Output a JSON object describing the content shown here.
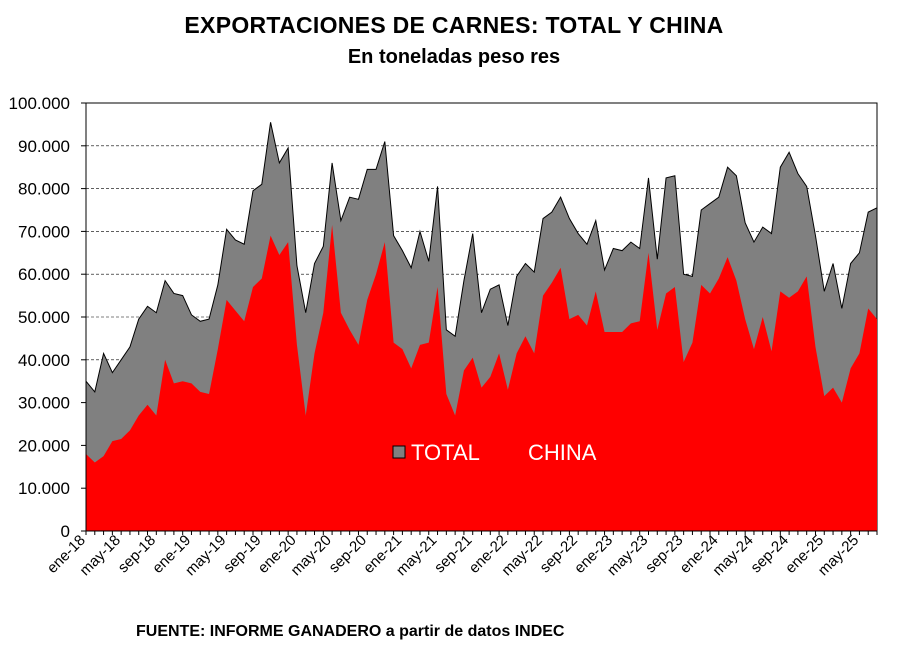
{
  "chart_data": {
    "type": "area",
    "title": "EXPORTACIONES DE CARNES: TOTAL Y CHINA",
    "subtitle": "En toneladas peso res",
    "source": "FUENTE: INFORME GANADERO a partir de datos INDEC",
    "ylim": [
      0,
      100000
    ],
    "yticks": [
      "0",
      "10.000",
      "20.000",
      "30.000",
      "40.000",
      "50.000",
      "60.000",
      "70.000",
      "80.000",
      "90.000",
      "100.000"
    ],
    "ytick_values": [
      0,
      10000,
      20000,
      30000,
      40000,
      50000,
      60000,
      70000,
      80000,
      90000,
      100000
    ],
    "xtick_labels": [
      "ene-18",
      "may-18",
      "sep-18",
      "ene-19",
      "may-19",
      "sep-19",
      "ene-20",
      "may-20",
      "sep-20",
      "ene-21",
      "may-21",
      "sep-21",
      "ene-22",
      "may-22",
      "sep-22",
      "ene-23",
      "may-23",
      "sep-23",
      "ene-24",
      "may-24",
      "sep-24",
      "ene-25",
      "may-25"
    ],
    "grid": "horizontal dashed",
    "legend_position": "center",
    "colors": {
      "total": "#808080",
      "china": "#ff0000"
    },
    "series": [
      {
        "name": "TOTAL",
        "values": [
          35000,
          32500,
          41500,
          37000,
          40000,
          43000,
          49500,
          52500,
          51000,
          58500,
          55500,
          55000,
          50500,
          49000,
          49500,
          57500,
          70500,
          68000,
          67000,
          79500,
          81000,
          95500,
          86000,
          89500,
          62000,
          51000,
          62500,
          66500,
          86000,
          72500,
          78000,
          77500,
          84500,
          84500,
          91000,
          69000,
          65500,
          61500,
          70000,
          63000,
          80500,
          47000,
          45500,
          58500,
          69500,
          51000,
          56500,
          57500,
          48000,
          59500,
          62500,
          60500,
          73000,
          74500,
          78000,
          73000,
          69500,
          67000,
          72500,
          61000,
          66000,
          65500,
          67500,
          66000,
          82500,
          63500,
          82500,
          83000,
          60000,
          59500,
          75000,
          76500,
          78000,
          85000,
          83000,
          72000,
          67500,
          71000,
          69500,
          85000,
          88500,
          83500,
          80500,
          69000,
          56000,
          62500,
          52000,
          62500,
          65000,
          74500,
          75500
        ],
        "last_month": "jul-25"
      },
      {
        "name": "CHINA",
        "values": [
          18000,
          16000,
          17500,
          21000,
          21500,
          23500,
          27000,
          29500,
          27000,
          40000,
          34500,
          35000,
          34500,
          32500,
          32000,
          42500,
          54000,
          51500,
          49000,
          57000,
          59000,
          69000,
          64500,
          67500,
          43500,
          27000,
          41500,
          51000,
          71500,
          51000,
          47000,
          43500,
          54000,
          60000,
          67500,
          44000,
          42500,
          38000,
          43500,
          44000,
          57000,
          32000,
          27000,
          37500,
          40500,
          33500,
          36000,
          41500,
          33000,
          41500,
          45500,
          41500,
          55000,
          58000,
          61500,
          49500,
          50500,
          48000,
          56000,
          46500,
          46500,
          46500,
          48500,
          49000,
          65000,
          47000,
          55500,
          57000,
          39500,
          44000,
          57500,
          55500,
          59000,
          64000,
          58500,
          49500,
          42500,
          50000,
          42000,
          56000,
          54500,
          56000,
          59500,
          43000,
          31500,
          33500,
          30000,
          38000,
          41500,
          52000,
          49500
        ]
      }
    ]
  }
}
